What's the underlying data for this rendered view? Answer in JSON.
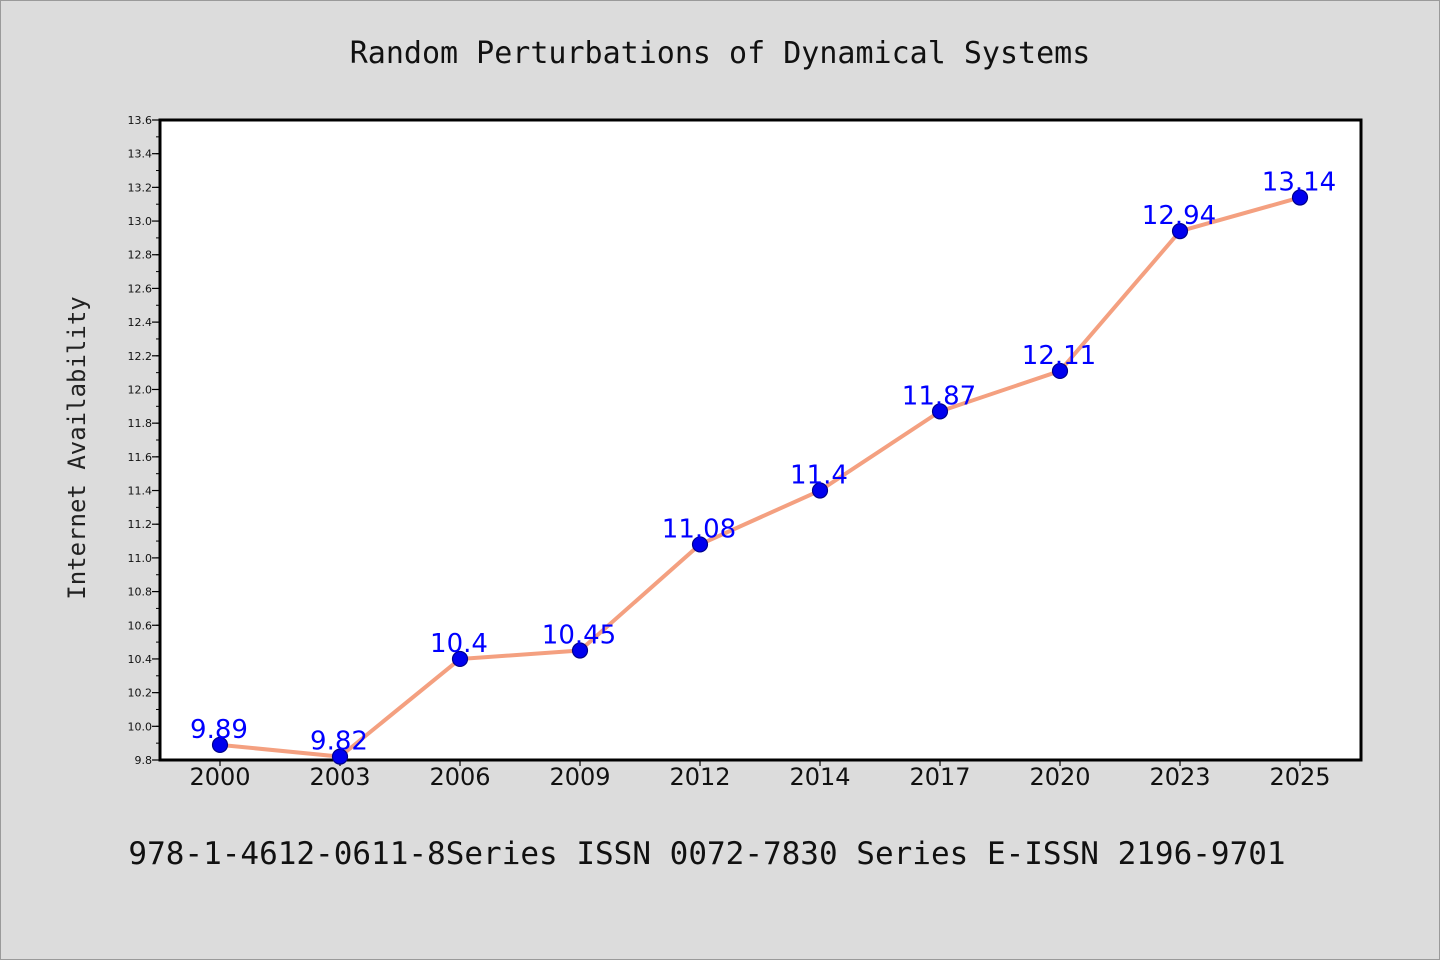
{
  "chart_data": {
    "type": "line",
    "title": "Random Perturbations of Dynamical Systems",
    "xlabel": "",
    "ylabel": "Internet Availability",
    "categories": [
      "2000",
      "2003",
      "2006",
      "2009",
      "2012",
      "2014",
      "2017",
      "2020",
      "2023",
      "2025"
    ],
    "series": [
      {
        "values": [
          9.89,
          9.82,
          10.4,
          10.45,
          11.08,
          11.4,
          11.87,
          12.11,
          12.94,
          13.14
        ]
      }
    ],
    "data_labels": [
      "9.89",
      "9.82",
      "10.4",
      "10.45",
      "11.08",
      "11.4",
      "11.87",
      "12.11",
      "12.94",
      "13.14"
    ],
    "ylim": [
      9.8,
      13.6
    ],
    "yticks": [
      "9.8",
      "10.0",
      "10.2",
      "10.4",
      "10.6",
      "10.8",
      "11.0",
      "11.2",
      "11.4",
      "11.6",
      "11.8",
      "12.0",
      "12.2",
      "12.4",
      "12.6",
      "12.8",
      "13.0",
      "13.2",
      "13.4",
      "13.6"
    ],
    "grid": false,
    "legend": "none",
    "colors": {
      "line": "#f4a080",
      "marker": "#0000ee",
      "marker_edge": "#00008b",
      "data_label": "#0000ff",
      "plot_background": "#ffffff",
      "page_background": "#dcdcdc"
    }
  },
  "footer": "978-1-4612-0611-8Series ISSN 0072-7830 Series E-ISSN 2196-9701"
}
